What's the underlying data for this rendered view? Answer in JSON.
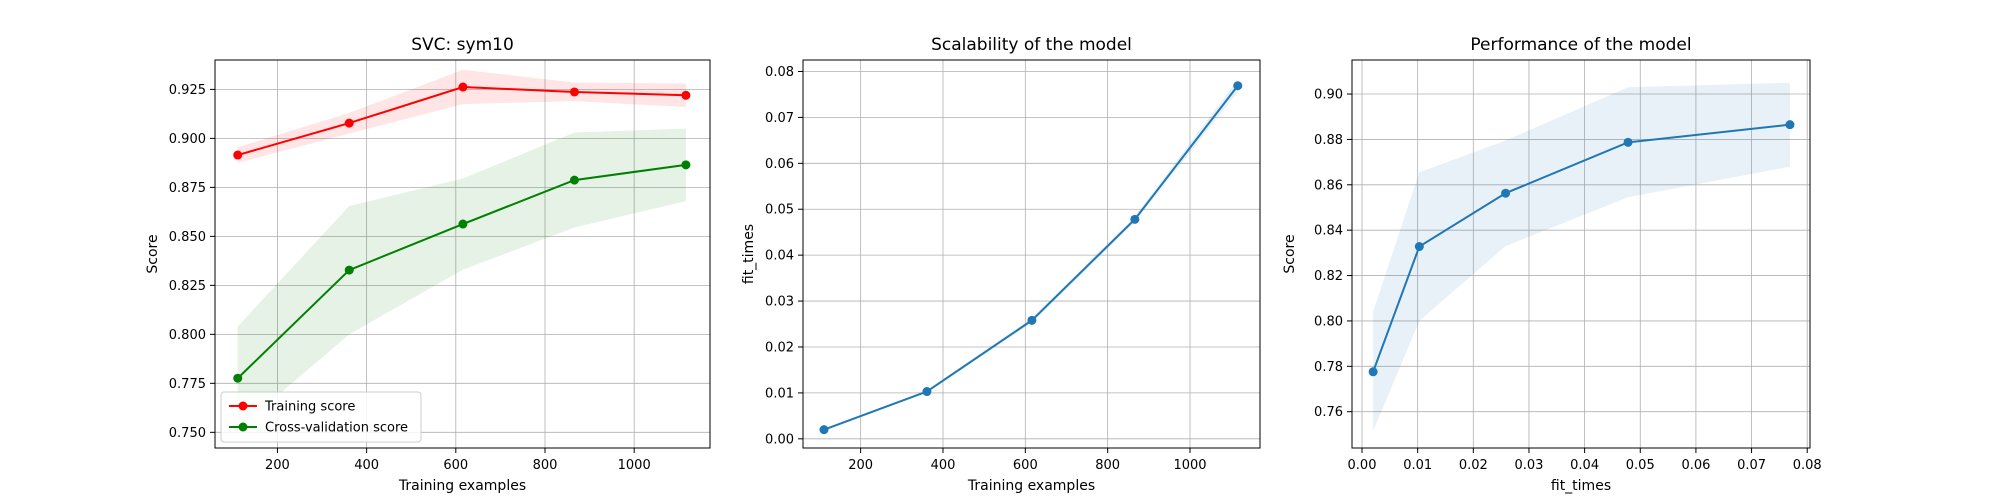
{
  "chart_data": [
    {
      "type": "line",
      "title": "SVC: sym10",
      "xlabel": "Training examples",
      "ylabel": "Score",
      "xlim": [
        60,
        1170
      ],
      "ylim": [
        0.742,
        0.94
      ],
      "xticks": [
        200,
        400,
        600,
        800,
        1000
      ],
      "yticks": [
        0.75,
        0.775,
        0.8,
        0.825,
        0.85,
        0.875,
        0.9,
        0.925
      ],
      "xtick_labels": [
        "200",
        "400",
        "600",
        "800",
        "1000"
      ],
      "ytick_labels": [
        "0.750",
        "0.775",
        "0.800",
        "0.825",
        "0.850",
        "0.875",
        "0.900",
        "0.925"
      ],
      "grid": true,
      "legend": "lower-left",
      "x": [
        111,
        361,
        616,
        866,
        1116
      ],
      "series": [
        {
          "name": "Training score",
          "color": "#ff0000",
          "values": [
            0.8915,
            0.9078,
            0.9262,
            0.9237,
            0.922
          ],
          "lower": [
            0.8875,
            0.9025,
            0.9175,
            0.919,
            0.916
          ],
          "upper": [
            0.8955,
            0.913,
            0.935,
            0.9285,
            0.928
          ]
        },
        {
          "name": "Cross-validation score",
          "color": "#008000",
          "values": [
            0.7776,
            0.8328,
            0.8563,
            0.8787,
            0.8865
          ],
          "lower": [
            0.7515,
            0.8,
            0.833,
            0.8545,
            0.868
          ],
          "upper": [
            0.804,
            0.8655,
            0.8795,
            0.903,
            0.905
          ]
        }
      ]
    },
    {
      "type": "line",
      "title": "Scalability of the model",
      "xlabel": "Training examples",
      "ylabel": "fit_times",
      "xlim": [
        60,
        1170
      ],
      "ylim": [
        -0.002,
        0.0825
      ],
      "xticks": [
        200,
        400,
        600,
        800,
        1000
      ],
      "yticks": [
        0.0,
        0.01,
        0.02,
        0.03,
        0.04,
        0.05,
        0.06,
        0.07,
        0.08
      ],
      "xtick_labels": [
        "200",
        "400",
        "600",
        "800",
        "1000"
      ],
      "ytick_labels": [
        "0.00",
        "0.01",
        "0.02",
        "0.03",
        "0.04",
        "0.05",
        "0.06",
        "0.07",
        "0.08"
      ],
      "grid": true,
      "x": [
        111,
        361,
        616,
        866,
        1116
      ],
      "series": [
        {
          "color": "#1f77b4",
          "values": [
            0.002,
            0.0103,
            0.0258,
            0.0478,
            0.0769
          ],
          "lower": [
            0.0018,
            0.01,
            0.0253,
            0.0472,
            0.0755
          ],
          "upper": [
            0.0022,
            0.0106,
            0.0263,
            0.0484,
            0.0783
          ]
        }
      ]
    },
    {
      "type": "line",
      "title": "Performance of the model",
      "xlabel": "fit_times",
      "ylabel": "Score",
      "xlim": [
        -0.0018,
        0.0805
      ],
      "ylim": [
        0.744,
        0.915
      ],
      "xticks": [
        0.0,
        0.01,
        0.02,
        0.03,
        0.04,
        0.05,
        0.06,
        0.07,
        0.08
      ],
      "yticks": [
        0.76,
        0.78,
        0.8,
        0.82,
        0.84,
        0.86,
        0.88,
        0.9
      ],
      "xtick_labels": [
        "0.00",
        "0.01",
        "0.02",
        "0.03",
        "0.04",
        "0.05",
        "0.06",
        "0.07",
        "0.08"
      ],
      "ytick_labels": [
        "0.76",
        "0.78",
        "0.80",
        "0.82",
        "0.84",
        "0.86",
        "0.88",
        "0.90"
      ],
      "grid": true,
      "x": [
        0.002,
        0.0103,
        0.0258,
        0.0478,
        0.0769
      ],
      "series": [
        {
          "color": "#1f77b4",
          "values": [
            0.7776,
            0.8328,
            0.8563,
            0.8787,
            0.8865
          ],
          "lower": [
            0.7515,
            0.8,
            0.833,
            0.8545,
            0.868
          ],
          "upper": [
            0.804,
            0.8655,
            0.8795,
            0.903,
            0.905
          ]
        }
      ]
    }
  ]
}
